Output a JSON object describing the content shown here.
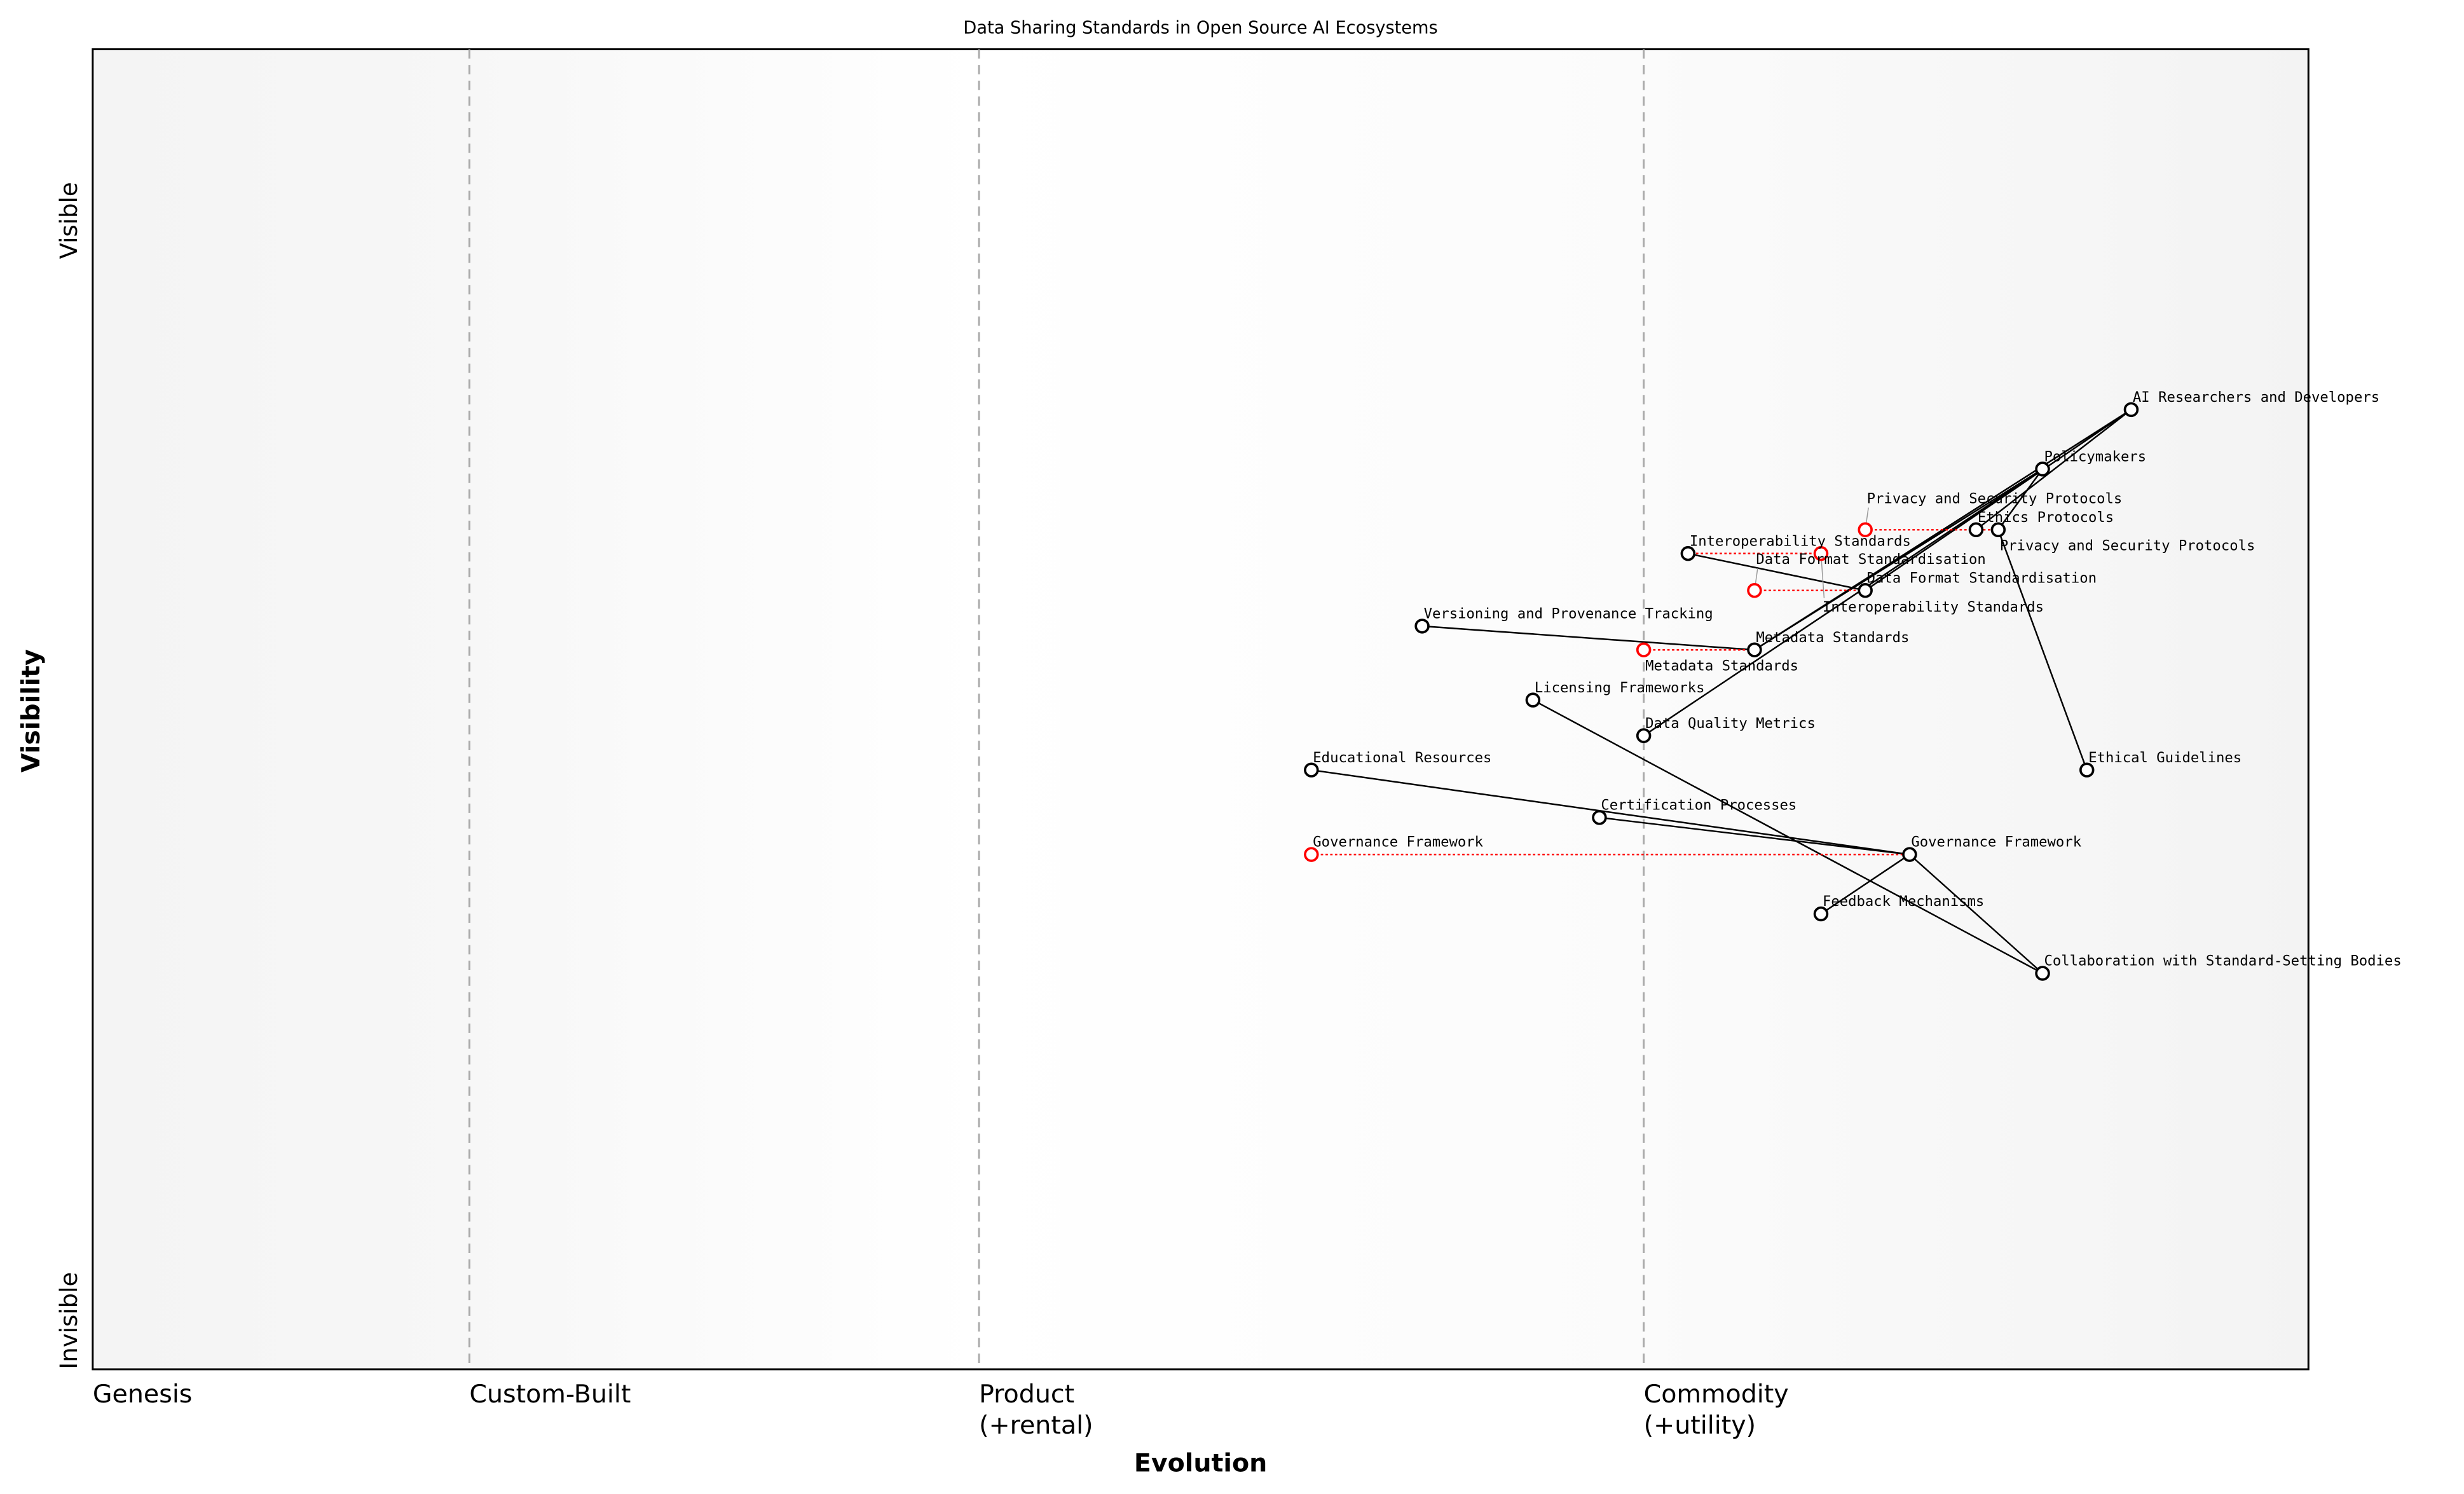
{
  "title": "Data Sharing Standards in Open Source AI Ecosystems",
  "axes": {
    "x_label": "Evolution",
    "y_label": "Visibility",
    "y_top": "Visible",
    "y_bottom": "Invisible",
    "stages": [
      {
        "label": "Genesis",
        "sub": "",
        "at": 0.0
      },
      {
        "label": "Custom-Built",
        "sub": "",
        "at": 0.17
      },
      {
        "label": "Product",
        "sub": "(+rental)",
        "at": 0.4
      },
      {
        "label": "Commodity",
        "sub": "(+utility)",
        "at": 0.7
      }
    ]
  },
  "colors": {
    "node": "#000000",
    "evolve": "#ff0000",
    "stage_line": "#aaaaaa",
    "band": "#f4f4f4"
  },
  "components": [
    {
      "id": "ai",
      "label": "AI Researchers and Developers",
      "evolution": 0.92,
      "visibility": 0.727
    },
    {
      "id": "pol",
      "label": "Policymakers",
      "evolution": 0.88,
      "visibility": 0.682
    },
    {
      "id": "eth",
      "label": "Ethics Protocols",
      "evolution": 0.85,
      "visibility": 0.636
    },
    {
      "id": "priv",
      "label": "Privacy and Security Protocols",
      "evolution": 0.86,
      "visibility": 0.636
    },
    {
      "id": "interop",
      "label": "Interoperability Standards",
      "evolution": 0.72,
      "visibility": 0.618
    },
    {
      "id": "dfs",
      "label": "Data Format Standardisation",
      "evolution": 0.8,
      "visibility": 0.59
    },
    {
      "id": "ver",
      "label": "Versioning and Provenance Tracking",
      "evolution": 0.6,
      "visibility": 0.563
    },
    {
      "id": "meta",
      "label": "Metadata Standards",
      "evolution": 0.75,
      "visibility": 0.545
    },
    {
      "id": "lic",
      "label": "Licensing Frameworks",
      "evolution": 0.65,
      "visibility": 0.507
    },
    {
      "id": "dqm",
      "label": "Data Quality Metrics",
      "evolution": 0.7,
      "visibility": 0.48
    },
    {
      "id": "edu",
      "label": "Educational Resources",
      "evolution": 0.55,
      "visibility": 0.454
    },
    {
      "id": "ethg",
      "label": "Ethical Guidelines",
      "evolution": 0.9,
      "visibility": 0.454
    },
    {
      "id": "cert",
      "label": "Certification Processes",
      "evolution": 0.68,
      "visibility": 0.418
    },
    {
      "id": "gov",
      "label": "Governance Framework",
      "evolution": 0.82,
      "visibility": 0.39
    },
    {
      "id": "fb",
      "label": "Feedback Mechanisms",
      "evolution": 0.78,
      "visibility": 0.345
    },
    {
      "id": "collab",
      "label": "Collaboration with Standard-Setting Bodies",
      "evolution": 0.88,
      "visibility": 0.3
    }
  ],
  "evolutions": [
    {
      "id": "priv",
      "label": "Privacy and Security Protocols",
      "evolution": 0.8
    },
    {
      "id": "interop",
      "label": "Interoperability Standards",
      "evolution": 0.78
    },
    {
      "id": "dfs",
      "label": "Data Format Standardisation",
      "evolution": 0.75
    },
    {
      "id": "meta",
      "label": "Metadata Standards",
      "evolution": 0.7
    },
    {
      "id": "gov",
      "label": "Governance Framework",
      "evolution": 0.55
    }
  ],
  "links": [
    [
      "ai",
      "dfs"
    ],
    [
      "ai",
      "meta"
    ],
    [
      "ai",
      "eth"
    ],
    [
      "pol",
      "dqm"
    ],
    [
      "pol",
      "meta"
    ],
    [
      "pol",
      "priv"
    ],
    [
      "priv",
      "ethg"
    ],
    [
      "interop",
      "dfs"
    ],
    [
      "ver",
      "meta"
    ],
    [
      "lic",
      "collab"
    ],
    [
      "edu",
      "gov"
    ],
    [
      "cert",
      "gov"
    ],
    [
      "gov",
      "fb"
    ],
    [
      "gov",
      "collab"
    ]
  ]
}
